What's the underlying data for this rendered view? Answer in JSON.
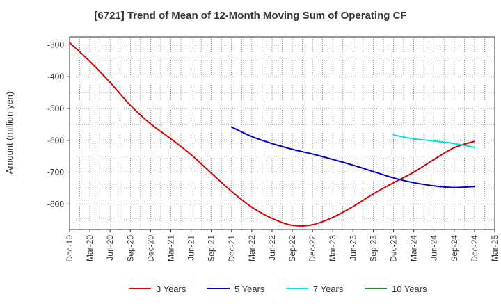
{
  "chart_data": {
    "type": "line",
    "title": "[6721]  Trend of Mean of 12-Month Moving Sum of Operating CF",
    "xlabel": "",
    "ylabel": "Amount (million yen)",
    "ylim": [
      -880,
      -275
    ],
    "yticks": [
      -300,
      -400,
      -500,
      -600,
      -700,
      -800
    ],
    "yticklabels": [
      "-300",
      "-400",
      "-500",
      "-600",
      "-700",
      "-800"
    ],
    "xticklabels": [
      "Dec-19",
      "Mar-20",
      "Jun-20",
      "Sep-20",
      "Dec-20",
      "Mar-21",
      "Jun-21",
      "Sep-21",
      "Dec-21",
      "Mar-22",
      "Jun-22",
      "Sep-22",
      "Dec-22",
      "Mar-23",
      "Jun-23",
      "Sep-23",
      "Dec-23",
      "Mar-24",
      "Jun-24",
      "Sep-24",
      "Dec-24",
      "Mar-25"
    ],
    "grid": true,
    "legend_position": "bottom",
    "series": [
      {
        "name": "3 Years",
        "color": "#dd0000",
        "points": [
          [
            0,
            -293
          ],
          [
            1,
            -352
          ],
          [
            2,
            -418
          ],
          [
            3,
            -490
          ],
          [
            4,
            -548
          ],
          [
            5,
            -595
          ],
          [
            6,
            -645
          ],
          [
            7,
            -703
          ],
          [
            8,
            -760
          ],
          [
            9,
            -810
          ],
          [
            10,
            -845
          ],
          [
            11,
            -867
          ],
          [
            12,
            -865
          ],
          [
            13,
            -842
          ],
          [
            14,
            -808
          ],
          [
            15,
            -768
          ],
          [
            16,
            -733
          ],
          [
            17,
            -700
          ],
          [
            18,
            -660
          ],
          [
            19,
            -623
          ],
          [
            20,
            -603
          ]
        ]
      },
      {
        "name": "5 Years",
        "color": "#0000cc",
        "points": [
          [
            8,
            -558
          ],
          [
            9,
            -588
          ],
          [
            10,
            -610
          ],
          [
            11,
            -628
          ],
          [
            12,
            -643
          ],
          [
            13,
            -660
          ],
          [
            14,
            -678
          ],
          [
            15,
            -698
          ],
          [
            16,
            -718
          ],
          [
            17,
            -733
          ],
          [
            18,
            -743
          ],
          [
            19,
            -748
          ],
          [
            20,
            -745
          ]
        ]
      },
      {
        "name": "7 Years",
        "color": "#00e5e5",
        "points": [
          [
            16,
            -583
          ],
          [
            17,
            -595
          ],
          [
            18,
            -602
          ],
          [
            19,
            -610
          ],
          [
            20,
            -622
          ]
        ]
      },
      {
        "name": "10 Years",
        "color": "#228b22",
        "points": []
      }
    ]
  }
}
